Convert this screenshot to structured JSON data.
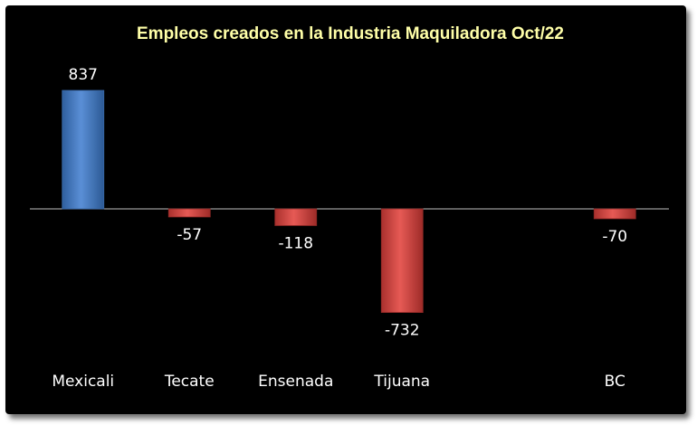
{
  "chart_data": {
    "type": "bar",
    "title": "Empleos creados en la Industria Maquiladora Oct/22",
    "categories": [
      "Mexicali",
      "Tecate",
      "Ensenada",
      "Tijuana",
      "",
      "BC"
    ],
    "values": [
      837,
      -57,
      -118,
      -732,
      null,
      -70
    ],
    "data_labels": [
      "837",
      "-57",
      "-118",
      "-732",
      "",
      "-70"
    ],
    "xlabel": "",
    "ylabel": "",
    "ylim": [
      -900,
      900
    ],
    "grid": false,
    "legend": "none",
    "colors": {
      "positive": "#4f81bd",
      "negative": "#c0504d",
      "background": "#000000",
      "title": "#ffffa8",
      "text": "#ffffff",
      "axis": "#bfbfbf"
    }
  }
}
